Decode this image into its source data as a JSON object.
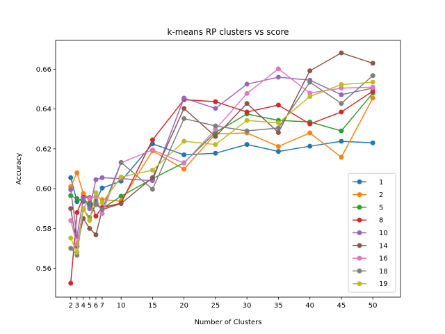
{
  "chart_data": {
    "type": "line",
    "title": "k-means RP clusters vs score",
    "xlabel": "Number of Clusters",
    "ylabel": "Accuracy",
    "x": [
      2,
      3,
      4,
      5,
      6,
      7,
      10,
      15,
      20,
      25,
      30,
      35,
      40,
      45,
      50
    ],
    "xlim": [
      -0.4,
      54.4
    ],
    "ylim": [
      0.5455,
      0.6745
    ],
    "yticks": [
      0.56,
      0.58,
      0.6,
      0.62,
      0.64,
      0.66
    ],
    "ytick_labels": [
      "0.56",
      "0.58",
      "0.60",
      "0.62",
      "0.64",
      "0.66"
    ],
    "grid": false,
    "legend": "lower-right",
    "series": [
      {
        "name": "1",
        "color": "#1f77b4",
        "values": [
          0.6055,
          0.5935,
          0.5955,
          0.591,
          0.594,
          0.6003,
          0.6038,
          0.6225,
          0.617,
          0.6178,
          0.6222,
          0.6187,
          0.6213,
          0.6238,
          0.623
        ]
      },
      {
        "name": "2",
        "color": "#ff7f0e",
        "values": [
          0.601,
          0.608,
          0.5975,
          0.595,
          0.596,
          0.5945,
          0.5937,
          0.619,
          0.6098,
          0.6275,
          0.628,
          0.6212,
          0.628,
          0.6158,
          0.6455
        ]
      },
      {
        "name": "5",
        "color": "#2ca02c",
        "values": [
          0.5965,
          0.595,
          0.5935,
          0.593,
          0.5925,
          0.59,
          0.5962,
          0.605,
          0.613,
          0.6283,
          0.6375,
          0.6343,
          0.6335,
          0.629,
          0.648
        ]
      },
      {
        "name": "8",
        "color": "#d62728",
        "values": [
          0.5525,
          0.588,
          0.5957,
          0.5955,
          0.5862,
          0.5905,
          0.5927,
          0.6245,
          0.6447,
          0.6437,
          0.6385,
          0.642,
          0.6325,
          0.6385,
          0.649
        ]
      },
      {
        "name": "10",
        "color": "#9467bd",
        "values": [
          0.5995,
          0.576,
          0.595,
          0.59,
          0.6045,
          0.6055,
          0.605,
          0.604,
          0.6455,
          0.6403,
          0.6525,
          0.656,
          0.6545,
          0.6472,
          0.6505
        ]
      },
      {
        "name": "14",
        "color": "#8c564b",
        "values": [
          0.59,
          0.571,
          0.585,
          0.58,
          0.5768,
          0.5895,
          0.5925,
          0.6055,
          0.6403,
          0.6262,
          0.6428,
          0.6282,
          0.6592,
          0.6682,
          0.663
        ]
      },
      {
        "name": "16",
        "color": "#e377c2",
        "values": [
          0.584,
          0.572,
          0.59,
          0.595,
          0.596,
          0.5875,
          0.613,
          0.6195,
          0.6128,
          0.6298,
          0.6478,
          0.6602,
          0.648,
          0.6505,
          0.651
        ]
      },
      {
        "name": "18",
        "color": "#7f7f7f",
        "values": [
          0.57,
          0.5665,
          0.5895,
          0.5855,
          0.592,
          0.5895,
          0.6132,
          0.5997,
          0.6352,
          0.6315,
          0.629,
          0.6305,
          0.6535,
          0.6428,
          0.6568
        ]
      },
      {
        "name": "19",
        "color": "#bcbd22",
        "values": [
          0.5752,
          0.568,
          0.59,
          0.584,
          0.598,
          0.593,
          0.6058,
          0.6093,
          0.6238,
          0.6222,
          0.6343,
          0.633,
          0.6463,
          0.6523,
          0.6535
        ]
      }
    ]
  }
}
